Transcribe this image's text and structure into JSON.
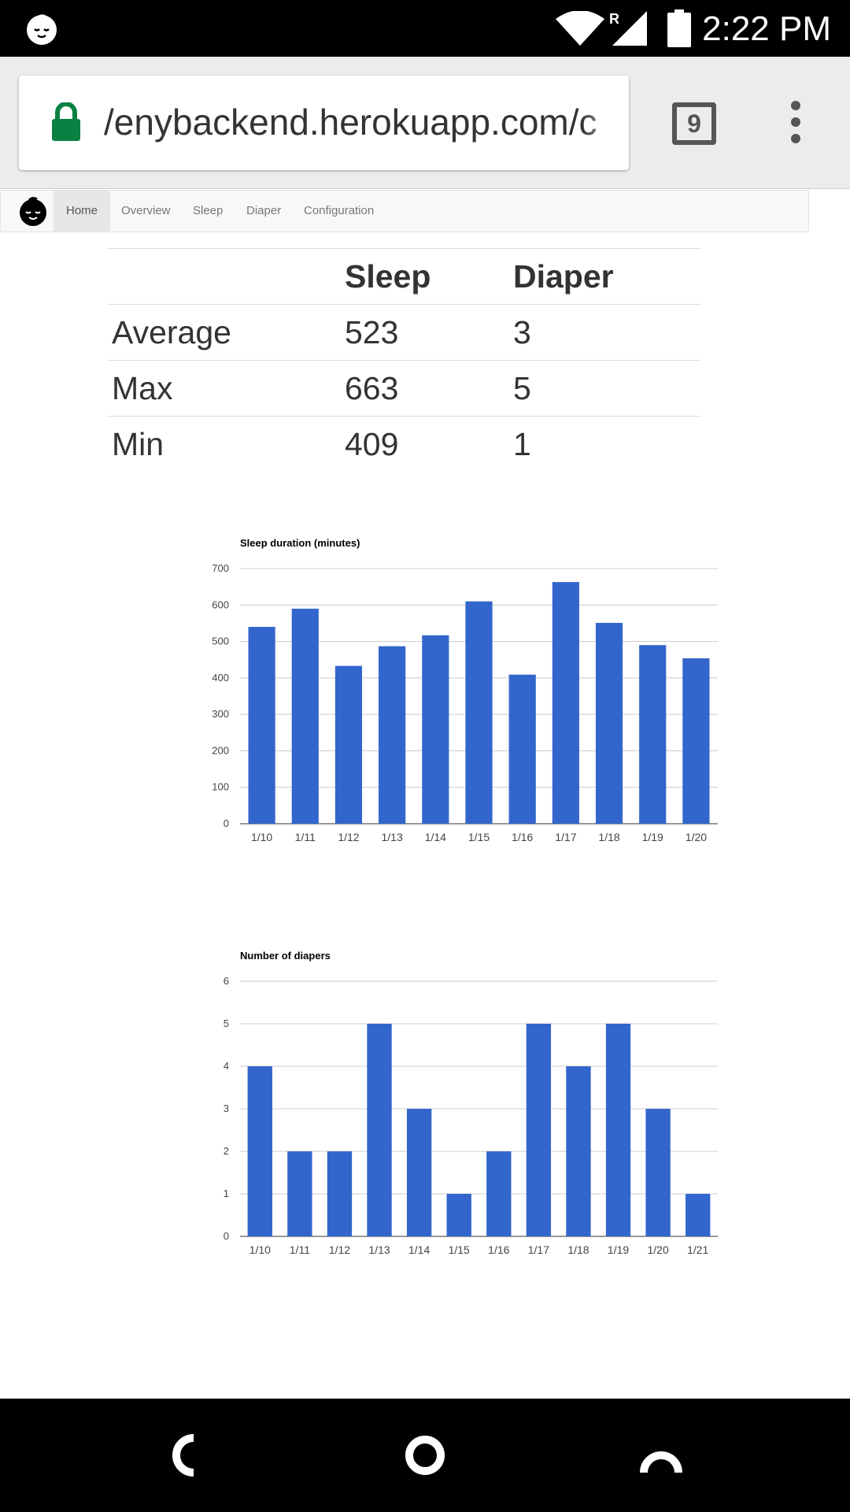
{
  "status_bar": {
    "time": "2:22 PM",
    "roaming_label": "R",
    "icons": [
      "baby-face-icon",
      "wifi-icon",
      "signal-icon",
      "battery-icon"
    ]
  },
  "browser": {
    "url": "/enybackend.herokuapp.com/c",
    "tab_count": "9",
    "lock_color": "#0b8043"
  },
  "site_nav": {
    "items": [
      {
        "label": "Home",
        "active": true
      },
      {
        "label": "Overview",
        "active": false
      },
      {
        "label": "Sleep",
        "active": false
      },
      {
        "label": "Diaper",
        "active": false
      },
      {
        "label": "Configuration",
        "active": false
      }
    ]
  },
  "stats_table": {
    "headers": [
      "",
      "Sleep",
      "Diaper"
    ],
    "rows": [
      {
        "label": "Average",
        "sleep": "523",
        "diaper": "3"
      },
      {
        "label": "Max",
        "sleep": "663",
        "diaper": "5"
      },
      {
        "label": "Min",
        "sleep": "409",
        "diaper": "1"
      }
    ]
  },
  "chart_data": [
    {
      "type": "bar",
      "title": "Sleep duration (minutes)",
      "xlabel": "",
      "ylabel": "",
      "categories": [
        "1/10",
        "1/11",
        "1/12",
        "1/13",
        "1/14",
        "1/15",
        "1/16",
        "1/17",
        "1/18",
        "1/19",
        "1/20"
      ],
      "values": [
        540,
        590,
        433,
        487,
        517,
        610,
        409,
        663,
        551,
        490,
        454
      ],
      "ylim": [
        0,
        700
      ],
      "yticks": [
        0,
        100,
        200,
        300,
        400,
        500,
        600,
        700
      ],
      "grid": true,
      "color": "#3366cc"
    },
    {
      "type": "bar",
      "title": "Number of diapers",
      "xlabel": "",
      "ylabel": "",
      "categories": [
        "1/10",
        "1/11",
        "1/12",
        "1/13",
        "1/14",
        "1/15",
        "1/16",
        "1/17",
        "1/18",
        "1/19",
        "1/20",
        "1/21"
      ],
      "values": [
        4,
        2,
        2,
        5,
        3,
        1,
        2,
        5,
        4,
        5,
        3,
        1
      ],
      "ylim": [
        0,
        6
      ],
      "yticks": [
        0,
        1,
        2,
        3,
        4,
        5,
        6
      ],
      "grid": true,
      "color": "#3366cc"
    }
  ],
  "nav_bar": {
    "buttons": [
      "back-button",
      "home-button",
      "recents-button"
    ]
  }
}
